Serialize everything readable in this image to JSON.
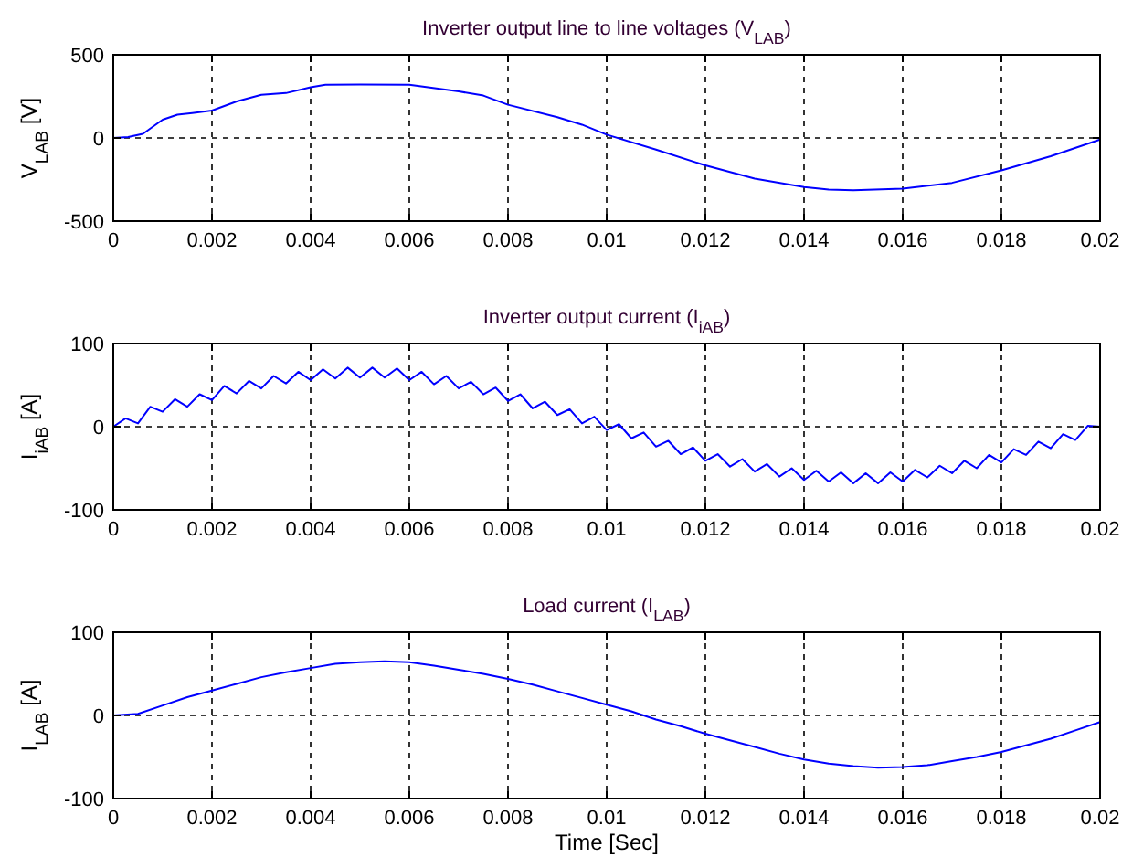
{
  "chart_data": [
    {
      "type": "line",
      "title": "Inverter output line to line voltages (V$_{LAB}$)",
      "ylabel": "V$_{LAB}$ [V]",
      "xlim": [
        0,
        0.02
      ],
      "xticks": [
        0,
        0.002,
        0.004,
        0.006,
        0.008,
        0.01,
        0.012,
        0.014,
        0.016,
        0.018,
        0.02
      ],
      "ylim": [
        -500,
        500
      ],
      "yticks": [
        -500,
        0,
        500
      ],
      "grid": true,
      "line_style": "solid",
      "series": [
        {
          "color": "#0000ff",
          "x": [
            0,
            0.0003,
            0.0006,
            0.001,
            0.0013,
            0.0016,
            0.002,
            0.0025,
            0.003,
            0.0035,
            0.004,
            0.0043,
            0.005,
            0.006,
            0.007,
            0.0075,
            0.008,
            0.009,
            0.0095,
            0.01,
            0.011,
            0.012,
            0.013,
            0.014,
            0.0145,
            0.015,
            0.016,
            0.017,
            0.018,
            0.019,
            0.02
          ],
          "values": [
            0,
            5,
            25,
            110,
            140,
            150,
            165,
            220,
            260,
            270,
            305,
            320,
            322,
            320,
            280,
            255,
            200,
            125,
            80,
            20,
            -70,
            -165,
            -245,
            -295,
            -310,
            -315,
            -305,
            -270,
            -195,
            -110,
            -10
          ]
        }
      ]
    },
    {
      "type": "line",
      "title": "Inverter output current (I$_{iAB}$)",
      "ylabel": "I$_{iAB}$ [A]",
      "xlim": [
        0,
        0.02
      ],
      "xticks": [
        0,
        0.002,
        0.004,
        0.006,
        0.008,
        0.01,
        0.012,
        0.014,
        0.016,
        0.018,
        0.02
      ],
      "ylim": [
        -100,
        100
      ],
      "yticks": [
        -100,
        0,
        100
      ],
      "grid": true,
      "line_style": "solid",
      "series": [
        {
          "color": "#0000ff",
          "x": [
            0,
            0.00025,
            0.0005,
            0.00075,
            0.001,
            0.00125,
            0.0015,
            0.00175,
            0.002,
            0.00225,
            0.0025,
            0.00275,
            0.003,
            0.00325,
            0.0035,
            0.00375,
            0.004,
            0.00425,
            0.0045,
            0.00475,
            0.005,
            0.00525,
            0.0055,
            0.00575,
            0.006,
            0.00625,
            0.0065,
            0.00675,
            0.007,
            0.00725,
            0.0075,
            0.00775,
            0.008,
            0.00825,
            0.0085,
            0.00875,
            0.009,
            0.00925,
            0.0095,
            0.00975,
            0.01,
            0.01025,
            0.0105,
            0.01075,
            0.011,
            0.01125,
            0.0115,
            0.01175,
            0.012,
            0.01225,
            0.0125,
            0.01275,
            0.013,
            0.01325,
            0.0135,
            0.01375,
            0.014,
            0.01425,
            0.0145,
            0.01475,
            0.015,
            0.01525,
            0.0155,
            0.01575,
            0.016,
            0.01625,
            0.0165,
            0.01675,
            0.017,
            0.01725,
            0.0175,
            0.01775,
            0.018,
            0.01825,
            0.0185,
            0.01875,
            0.019,
            0.01925,
            0.0195,
            0.01975,
            0.02
          ],
          "values": [
            0,
            10,
            4,
            24,
            18,
            33,
            24,
            39,
            32,
            49,
            40,
            55,
            46,
            61,
            52,
            66,
            56,
            69,
            58,
            71,
            59,
            71,
            59,
            70,
            56,
            66,
            51,
            61,
            46,
            54,
            39,
            47,
            31,
            39,
            22,
            30,
            14,
            21,
            4,
            12,
            -4,
            3,
            -14,
            -7,
            -24,
            -17,
            -33,
            -25,
            -41,
            -33,
            -48,
            -39,
            -54,
            -45,
            -60,
            -50,
            -64,
            -53,
            -66,
            -55,
            -68,
            -56,
            -68,
            -55,
            -66,
            -52,
            -61,
            -47,
            -56,
            -41,
            -50,
            -34,
            -43,
            -27,
            -34,
            -18,
            -26,
            -9,
            -16,
            1,
            0
          ]
        }
      ]
    },
    {
      "type": "line",
      "title": "Load current (I$_{LAB}$)",
      "xlabel": "Time [Sec]",
      "ylabel": "I$_{LAB}$ [A]",
      "xlim": [
        0,
        0.02
      ],
      "xticks": [
        0,
        0.002,
        0.004,
        0.006,
        0.008,
        0.01,
        0.012,
        0.014,
        0.016,
        0.018,
        0.02
      ],
      "ylim": [
        -100,
        100
      ],
      "yticks": [
        -100,
        0,
        100
      ],
      "grid": true,
      "line_style": "solid",
      "series": [
        {
          "color": "#0000ff",
          "x": [
            0,
            0.0005,
            0.001,
            0.0015,
            0.002,
            0.0025,
            0.003,
            0.0035,
            0.004,
            0.0045,
            0.005,
            0.0055,
            0.006,
            0.0065,
            0.007,
            0.0075,
            0.008,
            0.0085,
            0.009,
            0.0095,
            0.01,
            0.0105,
            0.011,
            0.0115,
            0.012,
            0.0125,
            0.013,
            0.0135,
            0.014,
            0.0145,
            0.015,
            0.0155,
            0.016,
            0.0165,
            0.017,
            0.0175,
            0.018,
            0.0185,
            0.019,
            0.0195,
            0.02
          ],
          "values": [
            0,
            2,
            12,
            22,
            30,
            38,
            46,
            52,
            57,
            62,
            64,
            65,
            64,
            60,
            55,
            50,
            44,
            37,
            29,
            21,
            13,
            5,
            -5,
            -13,
            -22,
            -30,
            -38,
            -46,
            -53,
            -58,
            -61,
            -63,
            -62,
            -60,
            -55,
            -50,
            -44,
            -36,
            -28,
            -18,
            -8
          ]
        }
      ]
    }
  ]
}
